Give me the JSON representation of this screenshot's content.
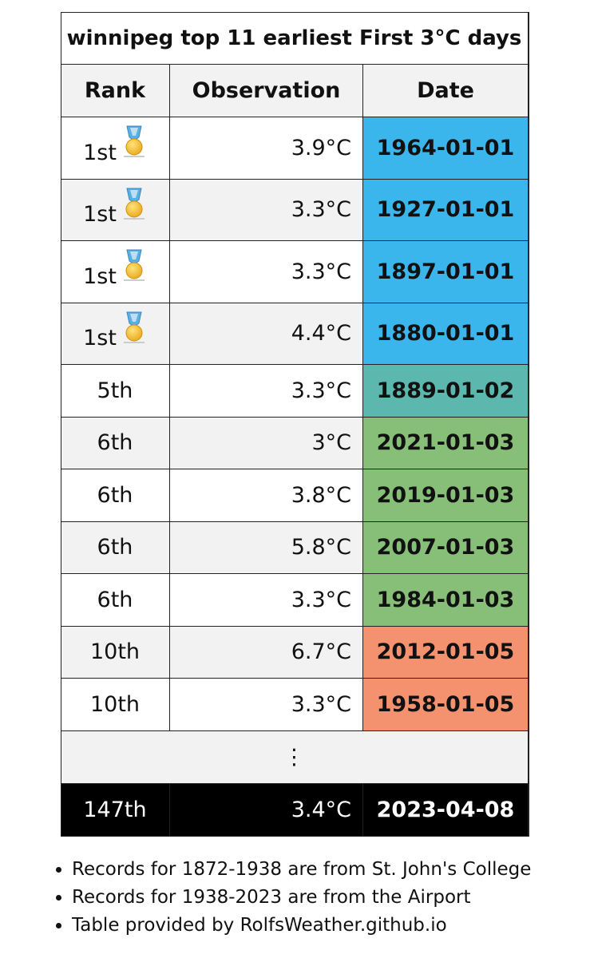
{
  "table": {
    "title": "winnipeg top 11 earliest First 3°C days",
    "columns": [
      "Rank",
      "Observation",
      "Date"
    ],
    "rows": [
      {
        "rank": "1st",
        "medal": true,
        "observation": "3.9°C",
        "date": "1964-01-01",
        "color": "#3bb6ec"
      },
      {
        "rank": "1st",
        "medal": true,
        "observation": "3.3°C",
        "date": "1927-01-01",
        "color": "#3bb6ec"
      },
      {
        "rank": "1st",
        "medal": true,
        "observation": "3.3°C",
        "date": "1897-01-01",
        "color": "#3bb6ec"
      },
      {
        "rank": "1st",
        "medal": true,
        "observation": "4.4°C",
        "date": "1880-01-01",
        "color": "#3bb6ec"
      },
      {
        "rank": "5th",
        "medal": false,
        "observation": "3.3°C",
        "date": "1889-01-02",
        "color": "#5cb8ae"
      },
      {
        "rank": "6th",
        "medal": false,
        "observation": "3°C",
        "date": "2021-01-03",
        "color": "#87bf78"
      },
      {
        "rank": "6th",
        "medal": false,
        "observation": "3.8°C",
        "date": "2019-01-03",
        "color": "#87bf78"
      },
      {
        "rank": "6th",
        "medal": false,
        "observation": "5.8°C",
        "date": "2007-01-03",
        "color": "#87bf78"
      },
      {
        "rank": "6th",
        "medal": false,
        "observation": "3.3°C",
        "date": "1984-01-03",
        "color": "#87bf78"
      },
      {
        "rank": "10th",
        "medal": false,
        "observation": "6.7°C",
        "date": "2012-01-05",
        "color": "#f4926f"
      },
      {
        "rank": "10th",
        "medal": false,
        "observation": "3.3°C",
        "date": "1958-01-05",
        "color": "#f4926f"
      }
    ],
    "ellipsis": "⋮",
    "current": {
      "rank": "147th",
      "observation": "3.4°C",
      "date": "2023-04-08"
    }
  },
  "notes": [
    "Records for 1872-1938 are from St. John's College",
    "Records for 1938-2023 are from the Airport",
    "Table provided by RolfsWeather.github.io"
  ]
}
